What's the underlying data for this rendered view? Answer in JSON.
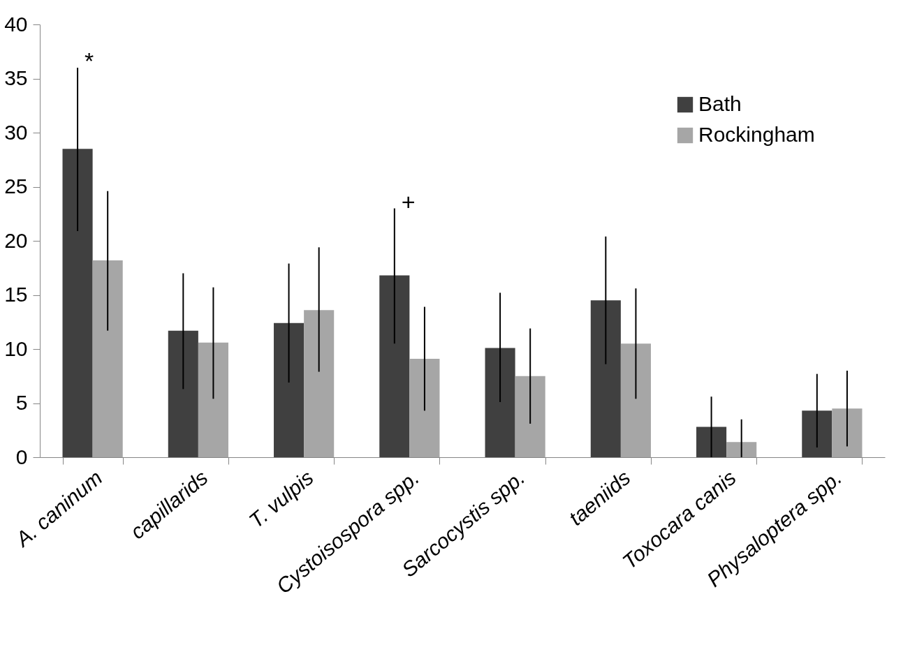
{
  "chart_data": {
    "type": "bar",
    "categories": [
      "A. caninum",
      "capillarids",
      "T. vulpis",
      "Cystoisospora spp.",
      "Sarcocystis spp.",
      "taeniids",
      "Toxocara canis",
      "Physaloptera spp."
    ],
    "series": [
      {
        "name": "Bath",
        "color": "#404040",
        "values": [
          28.5,
          11.7,
          12.4,
          16.8,
          10.1,
          14.5,
          2.8,
          4.3
        ],
        "errors": [
          [
            20.9,
            36.0
          ],
          [
            6.3,
            17.0
          ],
          [
            6.9,
            17.9
          ],
          [
            10.5,
            23.0
          ],
          [
            5.1,
            15.2
          ],
          [
            8.6,
            20.4
          ],
          [
            0,
            5.6
          ],
          [
            0.9,
            7.7
          ]
        ],
        "value_labels": [
          "*",
          null,
          null,
          "+",
          null,
          null,
          null,
          null
        ]
      },
      {
        "name": "Rockingham",
        "color": "#a6a6a6",
        "values": [
          18.2,
          10.6,
          13.6,
          9.1,
          7.5,
          10.5,
          1.4,
          4.5
        ],
        "errors": [
          [
            11.7,
            24.6
          ],
          [
            5.4,
            15.7
          ],
          [
            7.9,
            19.4
          ],
          [
            4.3,
            13.9
          ],
          [
            3.1,
            11.9
          ],
          [
            5.4,
            15.6
          ],
          [
            0,
            3.5
          ],
          [
            1.0,
            8.0
          ]
        ]
      }
    ],
    "ylim": [
      0,
      40
    ],
    "yticks": [
      0,
      5,
      10,
      15,
      20,
      25,
      30,
      35,
      40
    ],
    "grid": false,
    "legend": "top right"
  }
}
